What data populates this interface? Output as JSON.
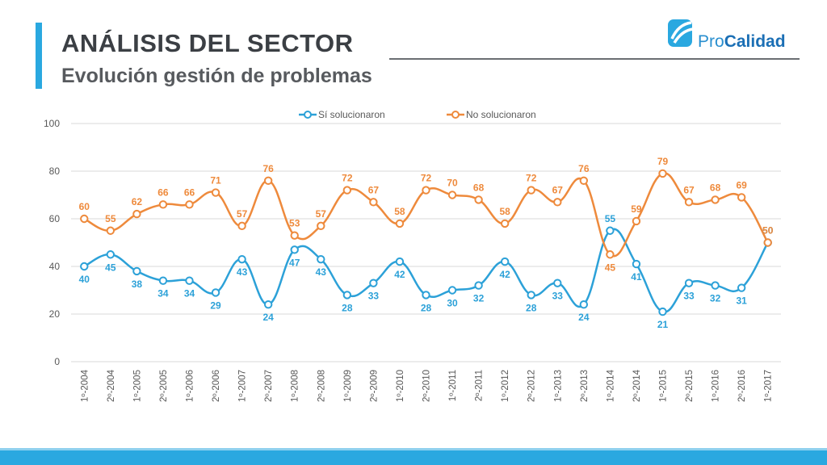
{
  "header": {
    "title": "ANÁLISIS DEL SECTOR",
    "subtitle": "Evolución gestión de problemas"
  },
  "logo": {
    "part1": "Pro",
    "part2": "Calidad"
  },
  "colors": {
    "accent": "#2aa8e0",
    "series_si": "#2ca1d8",
    "series_no": "#ee8a3c",
    "grid": "#d9d9d9"
  },
  "chart_data": {
    "type": "line",
    "title": "",
    "xlabel": "",
    "ylabel": "",
    "ylim": [
      0,
      100
    ],
    "yticks": [
      0,
      20,
      40,
      60,
      80,
      100
    ],
    "grid": true,
    "legend_position": "top",
    "categories": [
      "1º-2004",
      "2º-2004",
      "1º-2005",
      "2º-2005",
      "1º-2006",
      "2º-2006",
      "1º-2007",
      "2º-2007",
      "1º-2008",
      "2º-2008",
      "1º-2009",
      "2º-2009",
      "1º-2010",
      "2º-2010",
      "1º-2011",
      "2º-2011",
      "1º-2012",
      "2º-2012",
      "1º-2013",
      "2º-2013",
      "1º-2014",
      "2º-2014",
      "1º-2015",
      "2º-2015",
      "1º-2016",
      "2º-2016",
      "1º-2017"
    ],
    "series": [
      {
        "name": "Sí solucionaron",
        "values": [
          40,
          45,
          38,
          34,
          34,
          29,
          43,
          24,
          47,
          43,
          28,
          33,
          42,
          28,
          30,
          32,
          42,
          28,
          33,
          24,
          55,
          41,
          21,
          33,
          32,
          31,
          50
        ]
      },
      {
        "name": "No solucionaron",
        "values": [
          60,
          55,
          62,
          66,
          66,
          71,
          57,
          76,
          53,
          57,
          72,
          67,
          58,
          72,
          70,
          68,
          58,
          72,
          67,
          76,
          45,
          59,
          79,
          67,
          68,
          69,
          50
        ]
      }
    ]
  }
}
